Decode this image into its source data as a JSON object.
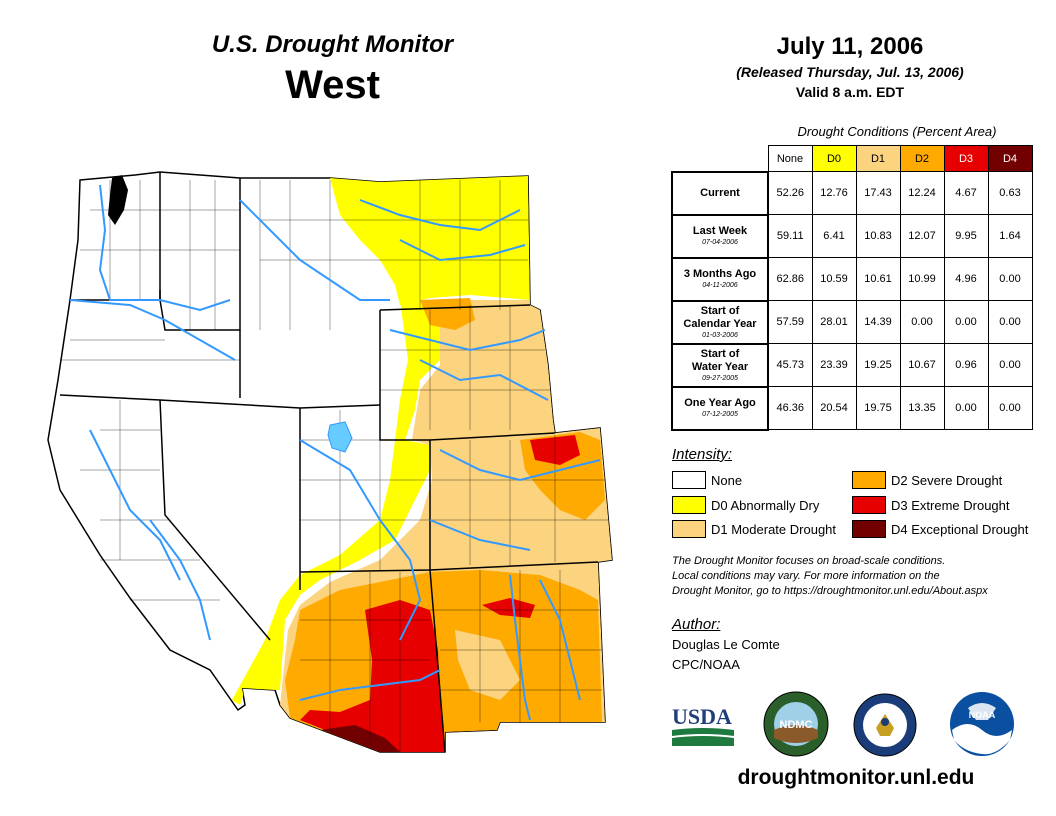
{
  "header": {
    "monitor_title": "U.S. Drought Monitor",
    "region": "West",
    "date": "July 11, 2006",
    "released": "(Released Thursday, Jul. 13, 2006)",
    "valid": "Valid 8 a.m. EDT"
  },
  "conditions": {
    "caption": "Drought Conditions (Percent Area)",
    "columns": [
      "None",
      "D0",
      "D1",
      "D2",
      "D3",
      "D4"
    ],
    "rows": [
      {
        "label_lines": [
          "Current"
        ],
        "date": "",
        "values": [
          "52.26",
          "12.76",
          "17.43",
          "12.24",
          "4.67",
          "0.63"
        ]
      },
      {
        "label_lines": [
          "Last Week"
        ],
        "date": "07-04-2006",
        "values": [
          "59.11",
          "6.41",
          "10.83",
          "12.07",
          "9.95",
          "1.64"
        ]
      },
      {
        "label_lines": [
          "3 Months Ago"
        ],
        "date": "04-11-2006",
        "values": [
          "62.86",
          "10.59",
          "10.61",
          "10.99",
          "4.96",
          "0.00"
        ]
      },
      {
        "label_lines": [
          "Start of",
          "Calendar Year"
        ],
        "date": "01-03-2006",
        "values": [
          "57.59",
          "28.01",
          "14.39",
          "0.00",
          "0.00",
          "0.00"
        ]
      },
      {
        "label_lines": [
          "Start of",
          "Water Year"
        ],
        "date": "09-27-2005",
        "values": [
          "45.73",
          "23.39",
          "19.25",
          "10.67",
          "0.96",
          "0.00"
        ]
      },
      {
        "label_lines": [
          "One Year Ago"
        ],
        "date": "07-12-2005",
        "values": [
          "46.36",
          "20.54",
          "19.75",
          "13.35",
          "0.00",
          "0.00"
        ]
      }
    ]
  },
  "legend": {
    "title": "Intensity:",
    "items": [
      {
        "label": "None",
        "color": "#ffffff"
      },
      {
        "label": "D0 Abnormally Dry",
        "color": "#ffff00"
      },
      {
        "label": "D1 Moderate Drought",
        "color": "#fcd37f"
      },
      {
        "label": "D2 Severe Drought",
        "color": "#ffaa00"
      },
      {
        "label": "D3 Extreme Drought",
        "color": "#e60000"
      },
      {
        "label": "D4 Exceptional Drought",
        "color": "#730000"
      }
    ]
  },
  "note": {
    "lines": [
      "The Drought Monitor focuses on broad-scale conditions.",
      "Local conditions may vary. For more information on the",
      "Drought Monitor, go to https://droughtmonitor.unl.edu/About.aspx"
    ]
  },
  "author": {
    "title": "Author:",
    "name": "Douglas Le Comte",
    "org": "CPC/NOAA"
  },
  "logos": {
    "usda": "USDA",
    "ndmc": "NDMC",
    "noaa": "NOAA"
  },
  "footer": {
    "url": "droughtmonitor.unl.edu"
  },
  "colors": {
    "none": "#ffffff",
    "d0": "#ffff00",
    "d1": "#fcd37f",
    "d2": "#ffaa00",
    "d3": "#e60000",
    "d4": "#730000",
    "river": "#3399ff"
  }
}
